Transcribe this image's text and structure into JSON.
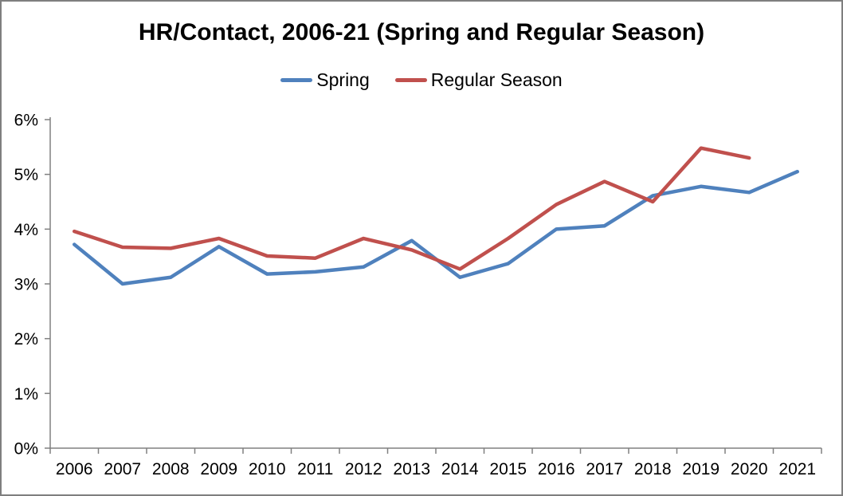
{
  "frame": {
    "border_color": "#7f7f7f",
    "background": "#ffffff"
  },
  "chart_data": {
    "type": "line",
    "title": "HR/Contact, 2006-21 (Spring and Regular Season)",
    "categories": [
      "2006",
      "2007",
      "2008",
      "2009",
      "2010",
      "2011",
      "2012",
      "2013",
      "2014",
      "2015",
      "2016",
      "2017",
      "2018",
      "2019",
      "2020",
      "2021"
    ],
    "series": [
      {
        "name": "Spring",
        "color": "#4F81BD",
        "values": [
          3.72,
          3.0,
          3.12,
          3.68,
          3.18,
          3.22,
          3.31,
          3.79,
          3.12,
          3.37,
          4.0,
          4.06,
          4.61,
          4.78,
          4.67,
          5.05
        ]
      },
      {
        "name": "Regular Season",
        "color": "#C0504D",
        "values": [
          3.96,
          3.67,
          3.65,
          3.83,
          3.51,
          3.47,
          3.83,
          3.62,
          3.27,
          3.83,
          4.45,
          4.87,
          4.5,
          5.48,
          5.3,
          null
        ]
      }
    ],
    "xlabel": "",
    "ylabel": "",
    "ylim": [
      0,
      6
    ],
    "ytick_step": 1,
    "ytick_labels": [
      "0%",
      "1%",
      "2%",
      "3%",
      "4%",
      "5%",
      "6%"
    ],
    "legend_position": "top",
    "grid": false,
    "axis_color": "#808080",
    "text_color": "#000000",
    "tick_font_size": 21,
    "line_width": 4.5
  }
}
